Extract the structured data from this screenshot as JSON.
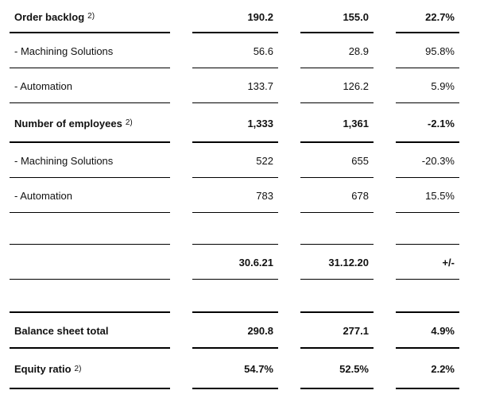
{
  "rows": [
    {
      "label": "Order backlog",
      "sup": "2)",
      "v1": "190.2",
      "v2": "155.0",
      "v3": "22.7%"
    },
    {
      "label": "- Machining Solutions",
      "v1": "56.6",
      "v2": "28.9",
      "v3": "95.8%"
    },
    {
      "label": "- Automation",
      "v1": "133.7",
      "v2": "126.2",
      "v3": "5.9%"
    },
    {
      "label": "Number of employees",
      "sup": "2)",
      "v1": "1,333",
      "v2": "1,361",
      "v3": "-2.1%"
    },
    {
      "label": "- Machining Solutions",
      "v1": "522",
      "v2": "655",
      "v3": "-20.3%"
    },
    {
      "label": "- Automation",
      "v1": "783",
      "v2": "678",
      "v3": "15.5%"
    },
    {
      "label": "",
      "v1": "",
      "v2": "",
      "v3": ""
    },
    {
      "label": "",
      "v1": "30.6.21",
      "v2": "31.12.20",
      "v3": "+/-"
    },
    {
      "label": "",
      "v1": "",
      "v2": "",
      "v3": ""
    },
    {
      "label": "Balance sheet total",
      "v1": "290.8",
      "v2": "277.1",
      "v3": "4.9%"
    },
    {
      "label": "Equity ratio",
      "sup": "2)",
      "v1": "54.7%",
      "v2": "52.5%",
      "v3": "2.2%"
    }
  ]
}
